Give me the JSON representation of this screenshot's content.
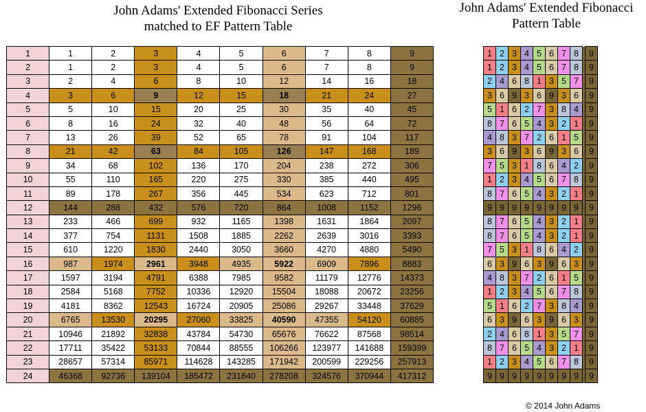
{
  "left_title": [
    "John Adams' Extended Fibonacci Series",
    "matched to EF Pattern Table"
  ],
  "right_title": [
    "John Adams' Extended Fibonacci",
    "Pattern Table"
  ],
  "copyright": "© 2014 John Adams",
  "colors": {
    "row_number_bg": "#f2d4d6",
    "white": "#ffffff",
    "light_tan": "#dbb98a",
    "gold": "#c8901a",
    "bright_gold": "#cc9a22",
    "dark_olive": "#8c7340",
    "olive": "#9a8050",
    "p1": "#f57f86",
    "p2": "#8fd0f0",
    "p3": "#c8901a",
    "p4": "#a99bd0",
    "p5": "#b7d98a",
    "p6": "#d9c9a5",
    "p7": "#f090e8",
    "p8": "#bcc6d9",
    "p9": "#7a6535"
  },
  "series_rows": [
    {
      "n": "1",
      "values": [
        "1",
        "2",
        "3",
        "4",
        "5",
        "6",
        "7",
        "8",
        "9"
      ]
    },
    {
      "n": "2",
      "values": [
        "1",
        "2",
        "3",
        "4",
        "5",
        "6",
        "7",
        "8",
        "9"
      ]
    },
    {
      "n": "3",
      "values": [
        "2",
        "4",
        "6",
        "8",
        "10",
        "12",
        "14",
        "16",
        "18"
      ]
    },
    {
      "n": "4",
      "values": [
        "3",
        "6",
        "9",
        "12",
        "15",
        "18",
        "21",
        "24",
        "27"
      ]
    },
    {
      "n": "5",
      "values": [
        "5",
        "10",
        "15",
        "20",
        "25",
        "30",
        "35",
        "40",
        "45"
      ]
    },
    {
      "n": "6",
      "values": [
        "8",
        "16",
        "24",
        "32",
        "40",
        "48",
        "56",
        "64",
        "72"
      ]
    },
    {
      "n": "7",
      "values": [
        "13",
        "26",
        "39",
        "52",
        "65",
        "78",
        "91",
        "104",
        "117"
      ]
    },
    {
      "n": "8",
      "values": [
        "21",
        "42",
        "63",
        "84",
        "105",
        "126",
        "147",
        "168",
        "189"
      ]
    },
    {
      "n": "9",
      "values": [
        "34",
        "68",
        "102",
        "136",
        "170",
        "204",
        "238",
        "272",
        "306"
      ]
    },
    {
      "n": "10",
      "values": [
        "55",
        "110",
        "165",
        "220",
        "275",
        "330",
        "385",
        "440",
        "495"
      ]
    },
    {
      "n": "11",
      "values": [
        "89",
        "178",
        "267",
        "356",
        "445",
        "534",
        "623",
        "712",
        "801"
      ]
    },
    {
      "n": "12",
      "values": [
        "144",
        "288",
        "432",
        "576",
        "720",
        "864",
        "1008",
        "1152",
        "1296"
      ]
    },
    {
      "n": "13",
      "values": [
        "233",
        "466",
        "699",
        "932",
        "1165",
        "1398",
        "1631",
        "1864",
        "2097"
      ]
    },
    {
      "n": "14",
      "values": [
        "377",
        "754",
        "1131",
        "1508",
        "1885",
        "2262",
        "2639",
        "3016",
        "3393"
      ]
    },
    {
      "n": "15",
      "values": [
        "610",
        "1220",
        "1830",
        "2440",
        "3050",
        "3660",
        "4270",
        "4880",
        "5490"
      ]
    },
    {
      "n": "16",
      "values": [
        "987",
        "1974",
        "2961",
        "3948",
        "4935",
        "5922",
        "6909",
        "7896",
        "8883"
      ]
    },
    {
      "n": "17",
      "values": [
        "1597",
        "3194",
        "4791",
        "6388",
        "7985",
        "9582",
        "11179",
        "12776",
        "14373"
      ]
    },
    {
      "n": "18",
      "values": [
        "2584",
        "5168",
        "7752",
        "10336",
        "12920",
        "15504",
        "18088",
        "20672",
        "23256"
      ]
    },
    {
      "n": "19",
      "values": [
        "4181",
        "8362",
        "12543",
        "16724",
        "20905",
        "25086",
        "29267",
        "33448",
        "37629"
      ]
    },
    {
      "n": "20",
      "values": [
        "6765",
        "13530",
        "20295",
        "27060",
        "33825",
        "40590",
        "47355",
        "54120",
        "60885"
      ]
    },
    {
      "n": "21",
      "values": [
        "10946",
        "21892",
        "32838",
        "43784",
        "54730",
        "65676",
        "76622",
        "87568",
        "98514"
      ]
    },
    {
      "n": "22",
      "values": [
        "17711",
        "35422",
        "53133",
        "70844",
        "88555",
        "106266",
        "123977",
        "141688",
        "159399"
      ]
    },
    {
      "n": "23",
      "values": [
        "28657",
        "57314",
        "85971",
        "114628",
        "143285",
        "171942",
        "200599",
        "229256",
        "257913"
      ]
    },
    {
      "n": "24",
      "values": [
        "46368",
        "92736",
        "139104",
        "185472",
        "231840",
        "278208",
        "324576",
        "370944",
        "417312"
      ]
    }
  ],
  "pattern_rows": [
    [
      "1",
      "2",
      "3",
      "4",
      "5",
      "6",
      "7",
      "8",
      "9"
    ],
    [
      "1",
      "2",
      "3",
      "4",
      "5",
      "6",
      "7",
      "8",
      "9"
    ],
    [
      "2",
      "4",
      "6",
      "8",
      "1",
      "3",
      "5",
      "7",
      "9"
    ],
    [
      "3",
      "6",
      "9",
      "3",
      "6",
      "9",
      "3",
      "6",
      "9"
    ],
    [
      "5",
      "1",
      "6",
      "2",
      "7",
      "3",
      "8",
      "4",
      "9"
    ],
    [
      "8",
      "7",
      "6",
      "5",
      "4",
      "3",
      "2",
      "1",
      "9"
    ],
    [
      "4",
      "8",
      "3",
      "7",
      "2",
      "6",
      "1",
      "5",
      "9"
    ],
    [
      "3",
      "6",
      "9",
      "3",
      "6",
      "9",
      "3",
      "6",
      "9"
    ],
    [
      "7",
      "5",
      "3",
      "1",
      "8",
      "6",
      "4",
      "2",
      "9"
    ],
    [
      "1",
      "2",
      "3",
      "4",
      "5",
      "6",
      "7",
      "8",
      "9"
    ],
    [
      "8",
      "7",
      "6",
      "5",
      "4",
      "3",
      "2",
      "1",
      "9"
    ],
    [
      "9",
      "9",
      "9",
      "9",
      "9",
      "9",
      "9",
      "9",
      "9"
    ],
    [
      "8",
      "7",
      "6",
      "5",
      "4",
      "3",
      "2",
      "1",
      "9"
    ],
    [
      "8",
      "7",
      "6",
      "5",
      "4",
      "3",
      "2",
      "1",
      "9"
    ],
    [
      "7",
      "5",
      "3",
      "1",
      "8",
      "6",
      "4",
      "2",
      "9"
    ],
    [
      "6",
      "3",
      "9",
      "6",
      "3",
      "9",
      "6",
      "3",
      "9"
    ],
    [
      "4",
      "8",
      "3",
      "7",
      "2",
      "6",
      "1",
      "5",
      "9"
    ],
    [
      "1",
      "2",
      "3",
      "4",
      "5",
      "6",
      "7",
      "8",
      "9"
    ],
    [
      "5",
      "1",
      "6",
      "2",
      "7",
      "3",
      "8",
      "4",
      "9"
    ],
    [
      "6",
      "3",
      "9",
      "6",
      "3",
      "9",
      "6",
      "3",
      "9"
    ],
    [
      "2",
      "4",
      "6",
      "8",
      "1",
      "3",
      "5",
      "7",
      "9"
    ],
    [
      "8",
      "7",
      "6",
      "5",
      "4",
      "3",
      "2",
      "1",
      "9"
    ],
    [
      "1",
      "2",
      "3",
      "4",
      "5",
      "6",
      "7",
      "8",
      "9"
    ],
    [
      "9",
      "9",
      "9",
      "9",
      "9",
      "9",
      "9",
      "9",
      "9"
    ]
  ]
}
